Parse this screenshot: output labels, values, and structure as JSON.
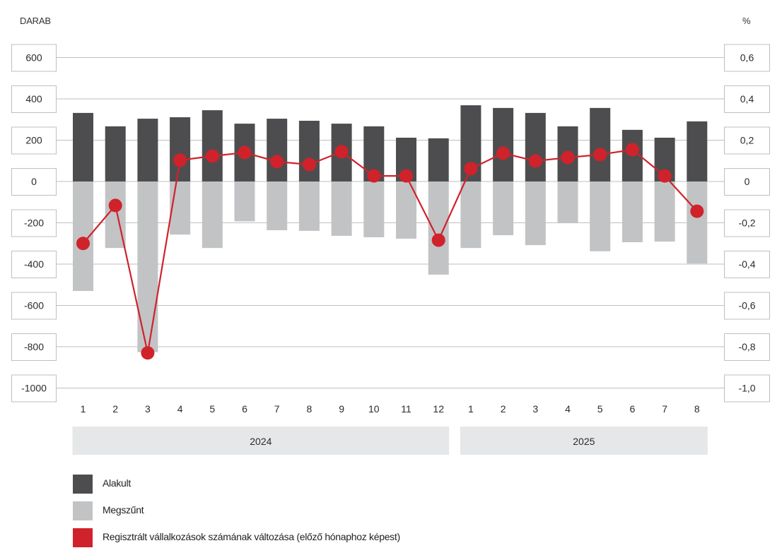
{
  "chart_data": {
    "type": "bar",
    "title": "",
    "left_axis": {
      "label": "DARAB",
      "range": [
        -1000,
        600
      ],
      "ticks": [
        600,
        400,
        200,
        0,
        -200,
        -400,
        -600,
        -800,
        -1000
      ],
      "tick_labels": [
        "600",
        "400",
        "200",
        "0",
        "-200",
        "-400",
        "-600",
        "-800",
        "-1000"
      ]
    },
    "right_axis": {
      "label": "%",
      "range": [
        -1.0,
        0.6
      ],
      "ticks": [
        0.6,
        0.4,
        0.2,
        0,
        -0.2,
        -0.4,
        -0.6,
        -0.8,
        -1.0
      ],
      "tick_labels": [
        "0,6",
        "0,4",
        "0,2",
        "0",
        "-0,2",
        "-0,4",
        "-0,6",
        "-0,8",
        "-1,0"
      ]
    },
    "grid": true,
    "categories": [
      "1",
      "2",
      "3",
      "4",
      "5",
      "6",
      "7",
      "8",
      "9",
      "10",
      "11",
      "12",
      "1",
      "2",
      "3",
      "4",
      "5",
      "6",
      "7",
      "8"
    ],
    "year_groups": [
      {
        "label": "2024",
        "start": 0,
        "end": 11
      },
      {
        "label": "2025",
        "start": 12,
        "end": 19
      }
    ],
    "series": [
      {
        "name": "Alakult",
        "type": "bar",
        "axis": "left",
        "color": "#4d4d4f",
        "values": [
          332,
          267,
          304,
          311,
          345,
          280,
          304,
          294,
          280,
          267,
          212,
          209,
          369,
          356,
          332,
          267,
          356,
          250,
          212,
          291
        ]
      },
      {
        "name": "Megszűnt",
        "type": "bar",
        "axis": "left",
        "color": "#c2c3c5",
        "values": [
          -530,
          -322,
          -826,
          -257,
          -322,
          -193,
          -236,
          -239,
          -263,
          -270,
          -277,
          -451,
          -322,
          -260,
          -308,
          -202,
          -338,
          -294,
          -291,
          -397
        ]
      },
      {
        "name": "Regisztrált vállalkozások számának változása (előző hónaphoz képest)",
        "type": "line",
        "axis": "right",
        "color": "#d0222b",
        "values": [
          -0.3,
          -0.116,
          -0.83,
          0.103,
          0.123,
          0.14,
          0.096,
          0.082,
          0.144,
          0.027,
          0.027,
          -0.284,
          0.062,
          0.137,
          0.099,
          0.116,
          0.13,
          0.154,
          0.027,
          -0.144
        ]
      }
    ],
    "legend_position": "bottom-left"
  },
  "legend": [
    {
      "label": "Alakult",
      "color": "#4d4d4f"
    },
    {
      "label": "Megszűnt",
      "color": "#c2c3c5"
    },
    {
      "label": "Regisztrált vállalkozások számának változása (előző hónaphoz képest)",
      "color": "#d0222b"
    }
  ],
  "colors": {
    "grid": "#bfbfbf",
    "tick_box_border": "#bfbfbf",
    "year_band": "#e6e7e8",
    "text": "#2b2b2b"
  }
}
